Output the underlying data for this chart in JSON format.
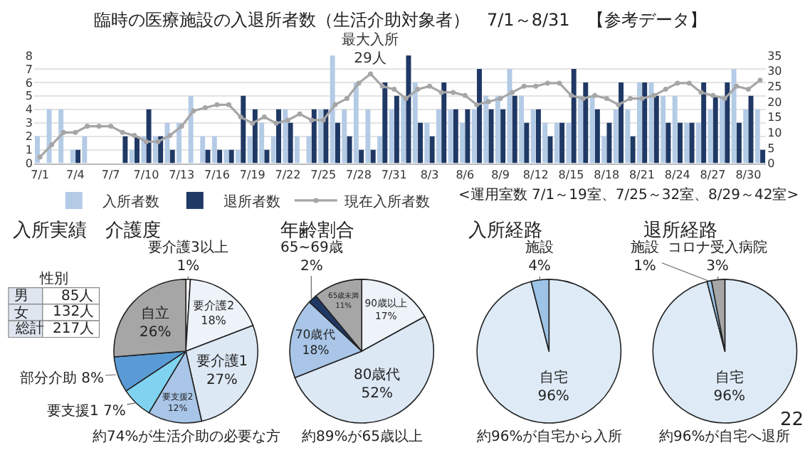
{
  "chart_data": [
    {
      "type": "bar",
      "title": "臨時の医療施設の入退所者数（生活介助対象者）　7/1～8/31　【参考データ】",
      "categories": [
        "7/1",
        null,
        null,
        "7/4",
        null,
        null,
        "7/7",
        null,
        null,
        "7/10",
        null,
        null,
        "7/13",
        null,
        null,
        "7/16",
        null,
        null,
        "7/19",
        null,
        null,
        "7/22",
        null,
        null,
        "7/25",
        null,
        null,
        "7/28",
        null,
        null,
        "7/31",
        null,
        null,
        "8/3",
        null,
        null,
        "8/6",
        null,
        null,
        "8/9",
        null,
        null,
        "8/12",
        null,
        null,
        "8/15",
        null,
        null,
        "8/18",
        null,
        null,
        "8/21",
        null,
        null,
        "8/24",
        null,
        null,
        "8/27",
        null,
        null,
        "8/30",
        null
      ],
      "series": [
        {
          "name": "入所者数",
          "color": "#b4cbe6",
          "values": [
            2,
            4,
            4,
            1,
            2,
            0,
            0,
            0,
            1,
            2,
            2,
            3,
            3,
            5,
            2,
            2,
            1,
            1,
            2,
            3,
            2,
            4,
            2,
            2,
            4,
            8,
            4,
            6,
            4,
            2,
            4,
            5,
            6,
            3,
            4,
            4,
            3,
            4,
            5,
            5,
            7,
            5,
            4,
            3,
            3,
            3,
            5,
            5,
            2,
            4,
            4,
            6,
            6,
            5,
            5,
            3,
            3,
            4,
            5,
            7,
            4,
            4
          ]
        },
        {
          "name": "退所者数",
          "color": "#1f3864",
          "values": [
            0,
            0,
            0,
            1,
            0,
            0,
            0,
            2,
            2,
            4,
            2,
            1,
            0,
            0,
            1,
            1,
            1,
            5,
            4,
            1,
            4,
            3,
            0,
            4,
            4,
            3,
            2,
            1,
            1,
            6,
            5,
            8,
            3,
            2,
            6,
            4,
            4,
            7,
            4,
            4,
            5,
            3,
            4,
            2,
            3,
            7,
            6,
            4,
            3,
            6,
            2,
            6,
            5,
            3,
            3,
            3,
            6,
            5,
            6,
            3,
            5,
            1
          ]
        },
        {
          "name": "現在入所者数",
          "type": "line",
          "axis": "y2",
          "color": "#a6a6a6",
          "values": [
            2,
            6,
            10,
            10,
            12,
            12,
            12,
            10,
            9,
            7,
            7,
            9,
            12,
            17,
            18,
            19,
            19,
            15,
            13,
            15,
            13,
            14,
            16,
            14,
            14,
            19,
            21,
            26,
            29,
            25,
            24,
            21,
            24,
            25,
            23,
            23,
            22,
            19,
            20,
            21,
            23,
            25,
            25,
            26,
            26,
            22,
            21,
            22,
            21,
            19,
            21,
            21,
            22,
            24,
            26,
            26,
            23,
            22,
            21,
            25,
            24,
            27
          ]
        }
      ],
      "ylim": [
        0,
        8
      ],
      "yticks": [
        0,
        1,
        2,
        3,
        4,
        5,
        6,
        7,
        8
      ],
      "y2lim": [
        0,
        35
      ],
      "y2ticks": [
        0,
        5,
        10,
        15,
        20,
        25,
        30,
        35
      ],
      "grid": "y",
      "legend": "bottom",
      "marker": "circle",
      "annotations": [
        "最大入所\n29人",
        "<運用室数 7/1～19室、7/25～32室、8/29～42室>"
      ]
    },
    {
      "type": "other",
      "title": "入所実績",
      "subtitle": "性別",
      "categories": [
        "男",
        "女",
        "総計"
      ],
      "values": [
        85,
        132,
        217
      ],
      "value_labels": [
        "85人",
        "132人",
        "217人"
      ]
    },
    {
      "type": "pie",
      "title": "介護度",
      "categories": [
        "要介護3以上",
        "要介護2",
        "要介護1",
        "要支援2",
        "要支援1",
        "部分介助",
        "自立"
      ],
      "values": [
        1,
        18,
        27,
        12,
        7,
        8,
        26
      ],
      "value_labels": [
        "1%",
        "18%",
        "27%",
        "12%",
        "7%",
        "8%",
        "26%"
      ],
      "colors": [
        "#ffffff",
        "#eef3fa",
        "#dde8f5",
        "#a9c6e8",
        "#7fd3f0",
        "#5b9bd5",
        "#a6a6a6"
      ],
      "annotations": [
        "約74%が生活介助の必要な方"
      ]
    },
    {
      "type": "pie",
      "title": "年齢割合",
      "categories": [
        "90歳以上",
        "80歳代",
        "70歳代",
        "65~69歳",
        "65歳未満"
      ],
      "values": [
        17,
        52,
        18,
        2,
        11
      ],
      "value_labels": [
        "17%",
        "52%",
        "18%",
        "2%",
        "11%"
      ],
      "colors": [
        "#eef3fa",
        "#dde8f5",
        "#a9c6e8",
        "#1f3864",
        "#a6a6a6"
      ],
      "annotations": [
        "約89%が65歳以上"
      ]
    },
    {
      "type": "pie",
      "title": "入所経路",
      "categories": [
        "自宅",
        "施設"
      ],
      "values": [
        96,
        4
      ],
      "value_labels": [
        "96%",
        "4%"
      ],
      "colors": [
        "#deebf7",
        "#9dc3e6"
      ],
      "annotations": [
        "約96%が自宅から入所"
      ]
    },
    {
      "type": "pie",
      "title": "退所経路",
      "categories": [
        "自宅",
        "施設",
        "コロナ受入病院"
      ],
      "values": [
        96,
        1,
        3
      ],
      "value_labels": [
        "96%",
        "1%",
        "3%"
      ],
      "colors": [
        "#deebf7",
        "#9dc3e6",
        "#a6a6a6"
      ],
      "annotations": [
        "約96%が自宅へ退所",
        "22"
      ]
    }
  ]
}
